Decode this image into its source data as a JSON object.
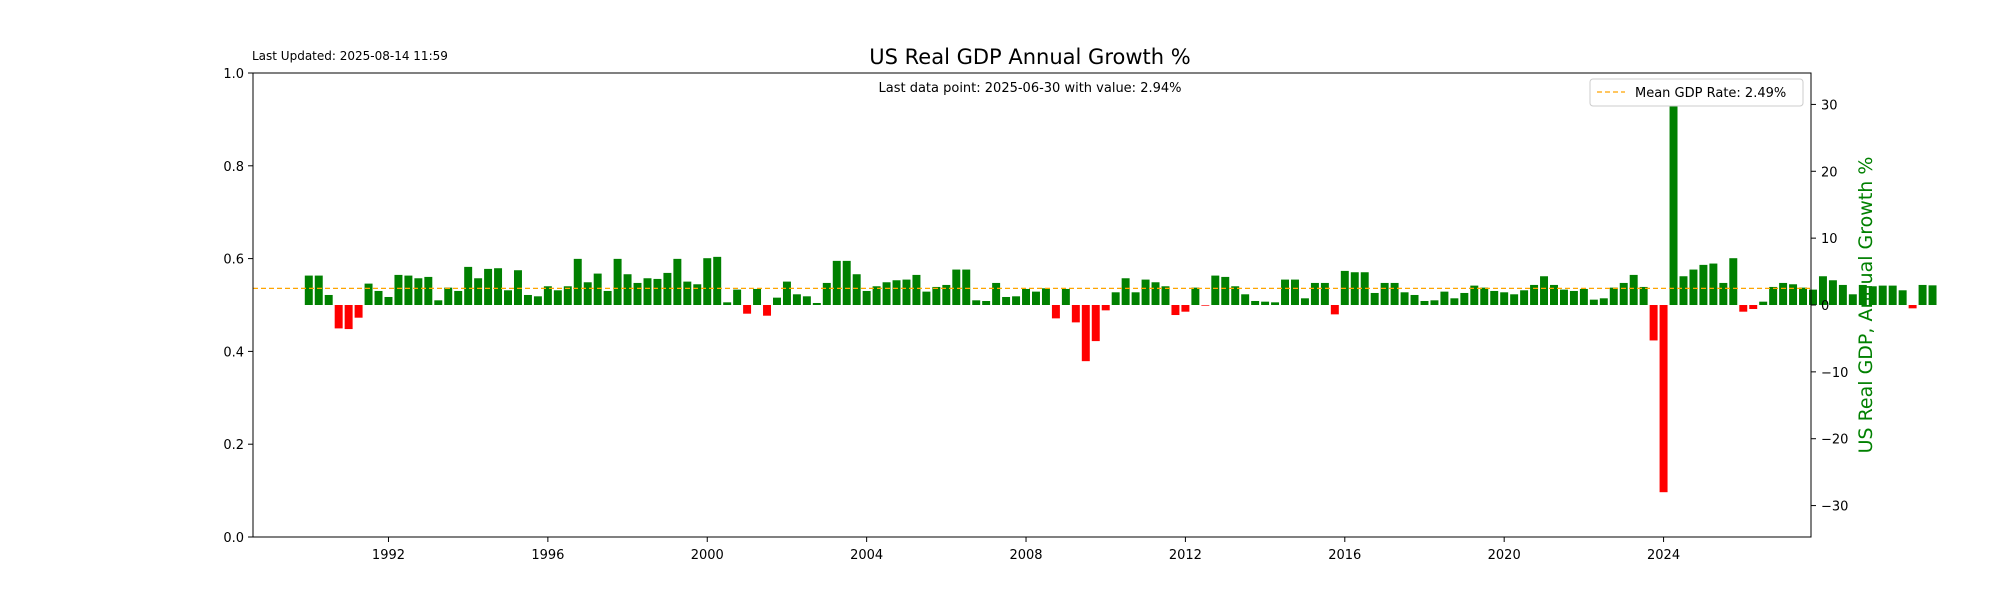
{
  "chart_data": {
    "type": "bar",
    "title": "US Real GDP Annual Growth %",
    "last_updated": "Last Updated: 2025-08-14 11:59",
    "annotation": "Last data point: 2025-06-30 with value: 2.94%",
    "legend": {
      "entries": [
        "Mean GDP Rate: 2.49%"
      ],
      "placement": "top-right"
    },
    "mean_value": 2.49,
    "xlabel": "",
    "ylabel_right": "US Real GDP, Annual Growth %",
    "x_range": [
      1988.6,
      2027.7
    ],
    "x_ticks": [
      "1992",
      "1996",
      "2000",
      "2004",
      "2008",
      "2012",
      "2016",
      "2020",
      "2024"
    ],
    "y_left_range": [
      0.0,
      1.0
    ],
    "y_left_ticks": [
      "0.0",
      "0.2",
      "0.4",
      "0.6",
      "0.8",
      "1.0"
    ],
    "y_right_range": [
      -34.7,
      34.7
    ],
    "y_right_ticks": [
      "30",
      "20",
      "10",
      "0",
      "−10",
      "−20",
      "−30"
    ],
    "colors": {
      "positive": "#008000",
      "negative": "#ff0000",
      "mean_line": "#ffa500",
      "ylabel_right": "#008000"
    },
    "grid": false,
    "series": [
      {
        "start_year": 1990.0,
        "step_years": 0.25,
        "values": [
          4.4,
          4.4,
          1.5,
          -3.5,
          -3.6,
          -1.9,
          3.2,
          2.1,
          1.2,
          4.5,
          4.4,
          4.0,
          4.2,
          0.7,
          2.6,
          2.1,
          5.7,
          4.0,
          5.4,
          5.5,
          2.2,
          5.2,
          1.5,
          1.3,
          2.8,
          2.2,
          2.8,
          6.9,
          3.4,
          4.7,
          2.1,
          6.9,
          4.6,
          3.3,
          4.0,
          3.9,
          4.8,
          6.9,
          3.5,
          3.1,
          7.0,
          7.2,
          0.4,
          2.3,
          -1.3,
          2.4,
          -1.6,
          1.1,
          3.5,
          1.6,
          1.3,
          0.3,
          3.3,
          6.6,
          6.6,
          4.6,
          2.1,
          2.8,
          3.4,
          3.7,
          3.8,
          4.5,
          2.0,
          2.7,
          3.0,
          5.3,
          5.3,
          0.7,
          0.6,
          3.3,
          1.2,
          1.3,
          2.4,
          2.0,
          2.5,
          -2.0,
          2.4,
          -2.6,
          -8.4,
          -5.4,
          -0.8,
          1.9,
          4.0,
          1.9,
          3.8,
          3.4,
          2.8,
          -1.5,
          -1.0,
          2.6,
          -0.1,
          4.4,
          4.2,
          2.8,
          1.6,
          0.6,
          0.5,
          0.4,
          3.8,
          3.8,
          1.0,
          3.3,
          3.3,
          -1.4,
          5.1,
          4.9,
          4.9,
          1.8,
          3.3,
          3.3,
          1.9,
          1.5,
          0.6,
          0.7,
          2.0,
          1.0,
          1.8,
          2.9,
          2.6,
          2.1,
          1.9,
          1.6,
          2.2,
          3.0,
          4.3,
          3.0,
          2.3,
          2.1,
          2.4,
          0.8,
          1.0,
          2.6,
          3.3,
          4.5,
          2.7,
          -5.3,
          -28.0,
          31.4,
          4.3,
          5.3,
          6.0,
          6.2,
          3.3,
          7.0,
          -1.0,
          -0.6,
          0.5,
          2.7,
          3.3,
          3.1,
          2.6,
          2.3,
          4.3,
          3.7,
          3.0,
          1.6,
          3.0,
          2.8,
          2.9,
          2.9,
          2.2,
          -0.5,
          3.0,
          2.94
        ]
      }
    ]
  }
}
